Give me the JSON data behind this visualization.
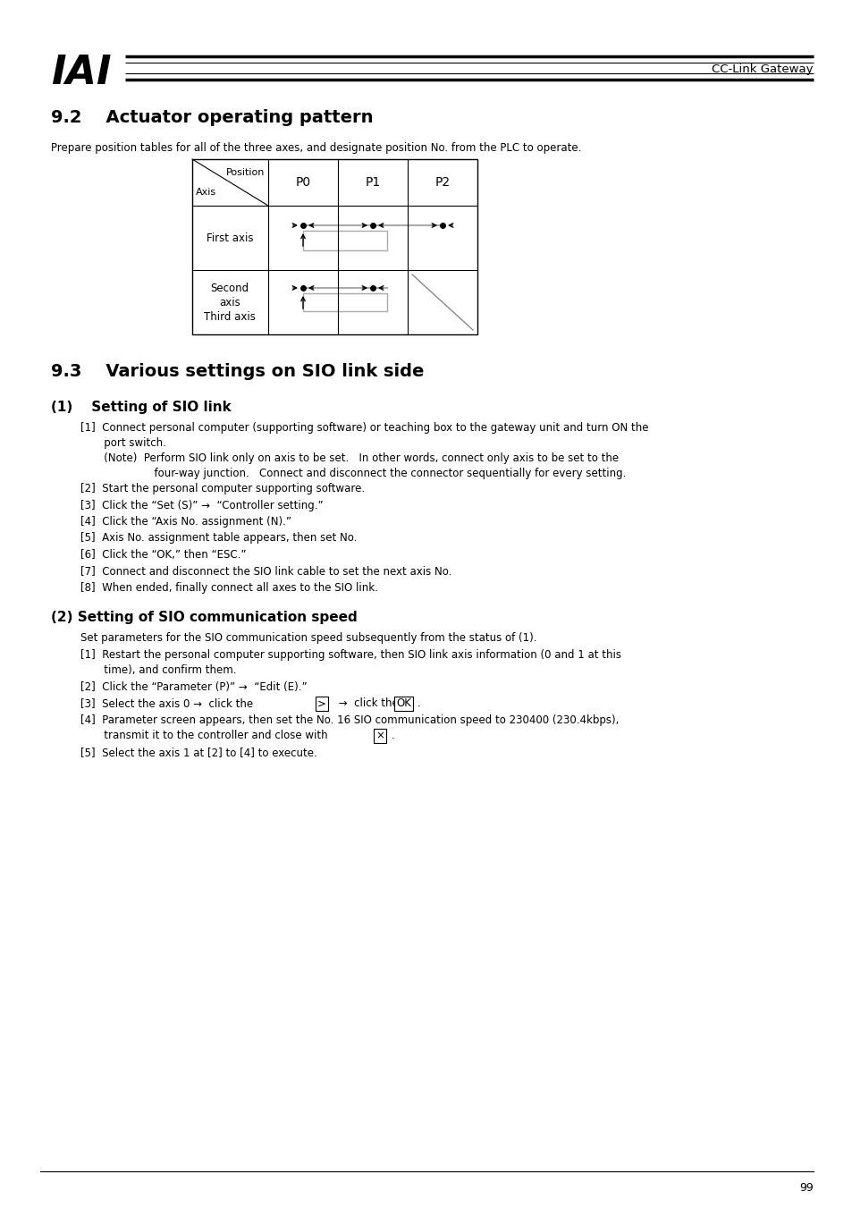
{
  "bg_color": "#ffffff",
  "text_color": "#000000",
  "page_number": "99",
  "logo_text": "IAI",
  "header_right": "CC-Link Gateway",
  "section_92_title": "9.2    Actuator operating pattern",
  "section_92_intro": "Prepare position tables for all of the three axes, and designate position No. from the PLC to operate.",
  "table_header_cols": [
    "P0",
    "P1",
    "P2"
  ],
  "table_row1_label": "First axis",
  "table_row2_label": "Second\naxis\nThird axis",
  "section_93_title": "9.3    Various settings on SIO link side",
  "sub1_title": "(1)    Setting of SIO link",
  "sub1_item1": "[1]  Connect personal computer (supporting software) or teaching box to the gateway unit and turn ON the\n       port switch.",
  "sub1_note": "       (Note)  Perform SIO link only on axis to be set.   In other words, connect only axis to be set to the\n                      four-way junction.   Connect and disconnect the connector sequentially for every setting.",
  "sub1_item2": "[2]  Start the personal computer supporting software.",
  "sub1_item3": "[3]  Click the “Set (S)” →  “Controller setting.”",
  "sub1_item4": "[4]  Click the “Axis No. assignment (N).”",
  "sub1_item5": "[5]  Axis No. assignment table appears, then set No.",
  "sub1_item6": "[6]  Click the “OK,” then “ESC.”",
  "sub1_item7": "[7]  Connect and disconnect the SIO link cable to set the next axis No.",
  "sub1_item8": "[8]  When ended, finally connect all axes to the SIO link.",
  "sub2_title": "(2) Setting of SIO communication speed",
  "sub2_intro": "Set parameters for the SIO communication speed subsequently from the status of (1).",
  "sub2_item1a": "[1]  Restart the personal computer supporting software, then SIO link axis information (0 and 1 at this",
  "sub2_item1b": "       time), and confirm them.",
  "sub2_item2": "[2]  Click the “Parameter (P)” →  “Edit (E).”",
  "sub2_item3_pre": "[3]  Select the axis 0 →  click the ",
  "sub2_item3_btn1": ">",
  "sub2_item3_mid": " →  click the ",
  "sub2_item3_btn2": "OK",
  "sub2_item3_post": ".",
  "sub2_item4a": "[4]  Parameter screen appears, then set the No. 16 SIO communication speed to 230400 (230.4kbps),",
  "sub2_item4b_pre": "       transmit it to the controller and close with ",
  "sub2_item4b_btn": "×",
  "sub2_item4b_post": ".",
  "sub2_item5": "[5]  Select the axis 1 at [2] to [4] to execute."
}
